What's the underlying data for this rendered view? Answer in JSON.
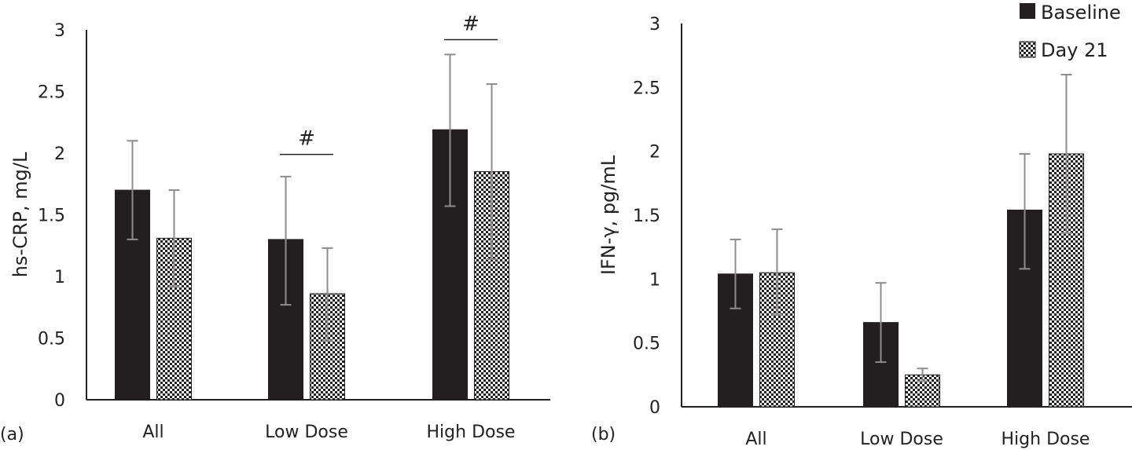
{
  "colors": {
    "baseline": "#231f20",
    "day21_pattern_dark": "#231f20",
    "day21_pattern_light": "#ffffff",
    "error_bar": "#8c8c8c",
    "axis": "#222222"
  },
  "legend": {
    "items": [
      {
        "label": "Baseline",
        "swatch": "solid"
      },
      {
        "label": "Day 21",
        "swatch": "checkerboard"
      }
    ]
  },
  "chart_data": [
    {
      "type": "bar",
      "panel_label": "(a)",
      "ylabel": "hs-CRP, mg/L",
      "categories": [
        "All",
        "Low Dose",
        "High Dose"
      ],
      "ylim": [
        0,
        3
      ],
      "yticks": [
        "0",
        "0.5",
        "1",
        "1.5",
        "2",
        "2.5",
        "3"
      ],
      "series": [
        {
          "name": "Baseline",
          "values": [
            1.7,
            1.3,
            2.19
          ],
          "error_low": [
            1.3,
            0.77,
            1.57
          ],
          "error_high": [
            2.1,
            1.81,
            2.8
          ]
        },
        {
          "name": "Day 21",
          "values": [
            1.31,
            0.86,
            1.85
          ],
          "error_low": [
            0.92,
            0.48,
            1.14
          ],
          "error_high": [
            1.7,
            1.23,
            2.56
          ]
        }
      ],
      "annotations": [
        {
          "text": "#",
          "category": "Low Dose",
          "y": 1.99
        },
        {
          "text": "#",
          "category": "High Dose",
          "y": 2.92
        }
      ],
      "grid": false
    },
    {
      "type": "bar",
      "panel_label": "(b)",
      "ylabel": "IFN-γ, pg/mL",
      "categories": [
        "All",
        "Low Dose",
        "High Dose"
      ],
      "ylim": [
        0,
        3
      ],
      "yticks": [
        "0",
        "0.5",
        "1",
        "1.5",
        "2",
        "2.5",
        "3"
      ],
      "series": [
        {
          "name": "Baseline",
          "values": [
            1.04,
            0.66,
            1.54
          ],
          "error_low": [
            0.77,
            0.35,
            1.08
          ],
          "error_high": [
            1.31,
            0.97,
            1.98
          ]
        },
        {
          "name": "Day 21",
          "values": [
            1.05,
            0.25,
            1.98
          ],
          "error_low": [
            0.72,
            0.2,
            1.36
          ],
          "error_high": [
            1.39,
            0.3,
            2.6
          ]
        }
      ],
      "annotations": [],
      "grid": false
    }
  ]
}
